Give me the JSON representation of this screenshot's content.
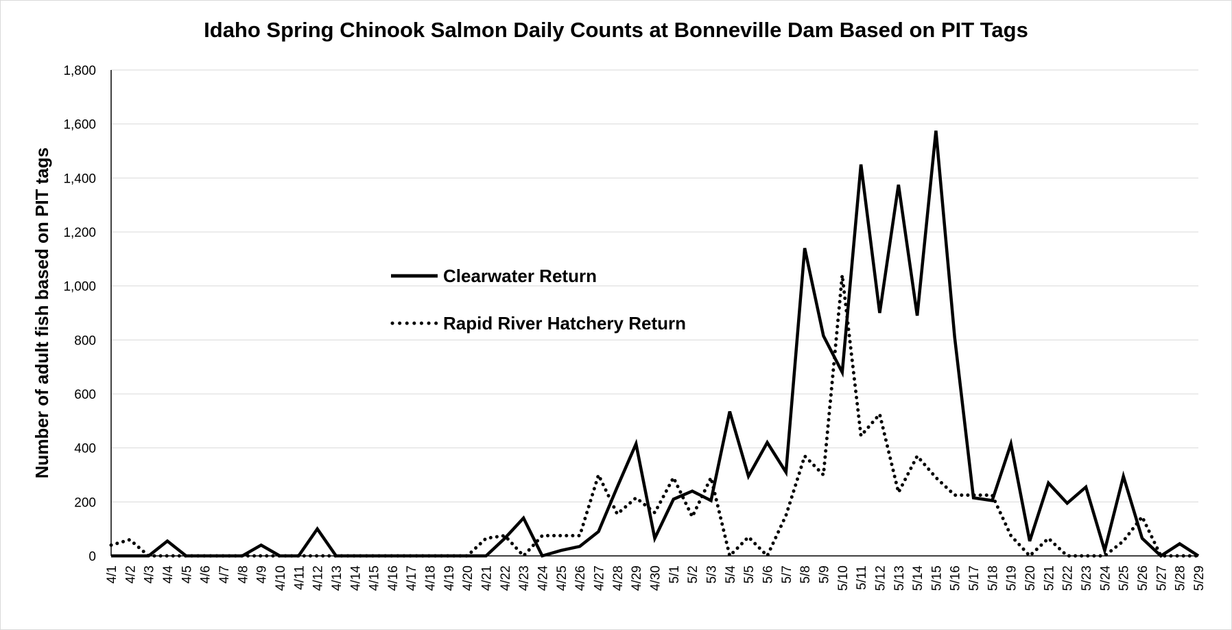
{
  "chart_data": {
    "type": "line",
    "title": "Idaho Spring Chinook Salmon Daily Counts at Bonneville Dam Based on PIT Tags",
    "xlabel": "",
    "ylabel": "Number of adult fish based on PIT tags",
    "ylim": [
      0,
      1800
    ],
    "yticks": [
      "0",
      "200",
      "400",
      "600",
      "800",
      "1,000",
      "1,200",
      "1,400",
      "1,600",
      "1,800"
    ],
    "grid": "horizontal",
    "legend": "center-left inside plot",
    "x": [
      "4/1",
      "4/2",
      "4/3",
      "4/4",
      "4/5",
      "4/6",
      "4/7",
      "4/8",
      "4/9",
      "4/10",
      "4/11",
      "4/12",
      "4/13",
      "4/14",
      "4/15",
      "4/16",
      "4/17",
      "4/18",
      "4/19",
      "4/20",
      "4/21",
      "4/22",
      "4/23",
      "4/24",
      "4/25",
      "4/26",
      "4/27",
      "4/28",
      "4/29",
      "4/30",
      "5/1",
      "5/2",
      "5/3",
      "5/4",
      "5/5",
      "5/6",
      "5/7",
      "5/8",
      "5/9",
      "5/10",
      "5/11",
      "5/12",
      "5/13",
      "5/14",
      "5/15",
      "5/16",
      "5/17",
      "5/18",
      "5/19",
      "5/20",
      "5/21",
      "5/22",
      "5/23",
      "5/24",
      "5/25",
      "5/26",
      "5/27",
      "5/28",
      "5/29"
    ],
    "series": [
      {
        "name": "Clearwater Return",
        "style": "solid",
        "color": "#000000",
        "values": [
          0,
          0,
          0,
          55,
          0,
          0,
          0,
          0,
          40,
          0,
          0,
          100,
          0,
          0,
          0,
          0,
          0,
          0,
          0,
          0,
          0,
          65,
          140,
          0,
          20,
          35,
          90,
          255,
          415,
          65,
          210,
          240,
          205,
          535,
          295,
          420,
          310,
          1140,
          815,
          680,
          1450,
          900,
          1375,
          890,
          1575,
          810,
          215,
          205,
          415,
          55,
          270,
          195,
          255,
          20,
          295,
          65,
          0,
          45,
          0
        ]
      },
      {
        "name": "Rapid River Hatchery Return",
        "style": "dotted",
        "color": "#000000",
        "values": [
          40,
          60,
          0,
          0,
          0,
          0,
          0,
          0,
          0,
          0,
          0,
          0,
          0,
          0,
          0,
          0,
          0,
          0,
          0,
          0,
          65,
          75,
          0,
          75,
          75,
          75,
          300,
          155,
          215,
          160,
          290,
          145,
          290,
          0,
          70,
          0,
          150,
          370,
          300,
          1040,
          445,
          525,
          235,
          370,
          290,
          225,
          225,
          225,
          75,
          0,
          65,
          0,
          0,
          0,
          55,
          145,
          0,
          0,
          0
        ]
      }
    ]
  }
}
